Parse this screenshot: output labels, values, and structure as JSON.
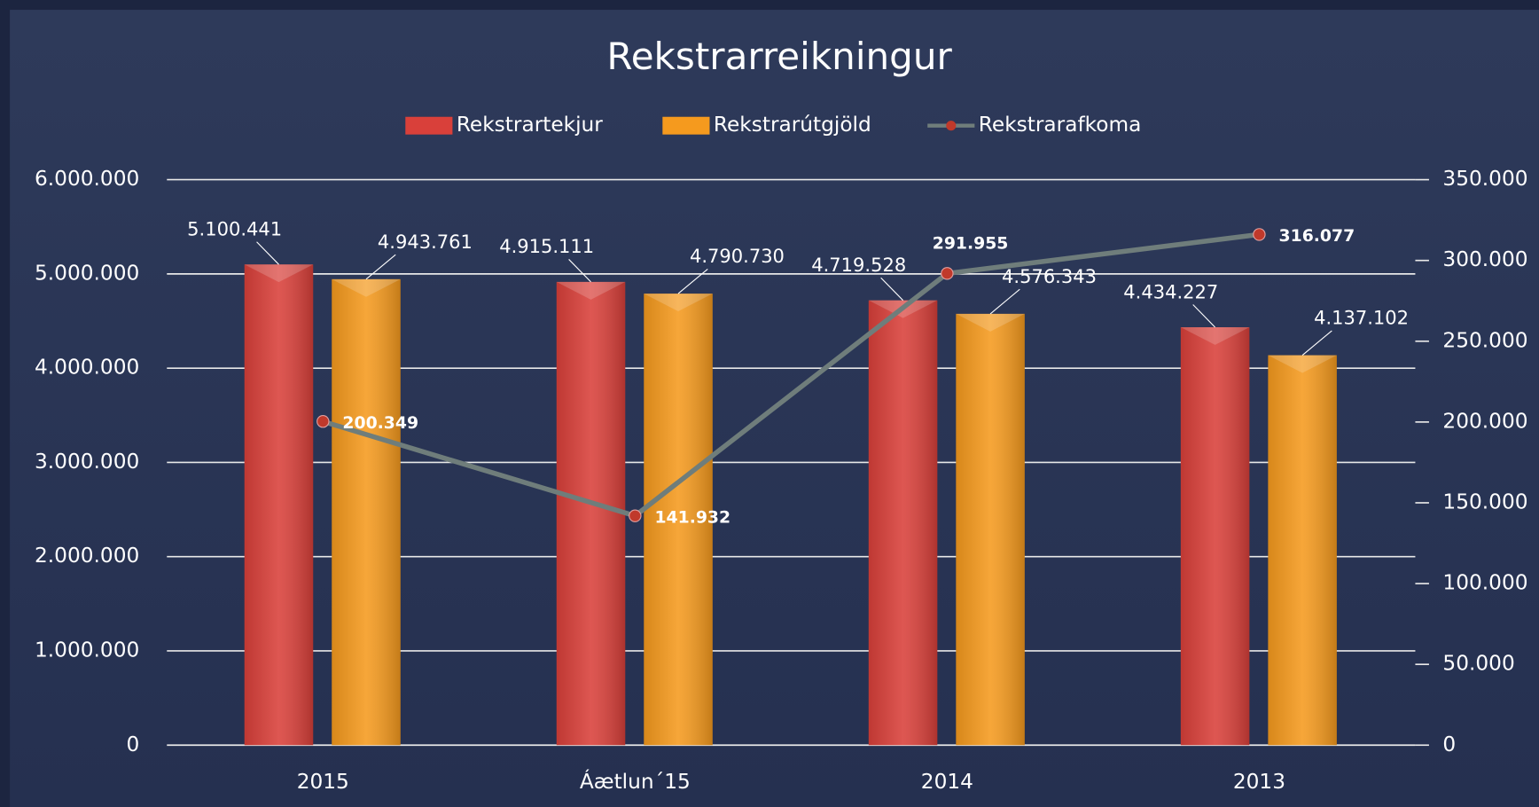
{
  "chart_data": {
    "type": "bar",
    "title": "Rekstrarreikningur",
    "categories": [
      "2015",
      "Áætlun´15",
      "2014",
      "2013"
    ],
    "series": [
      {
        "name": "Rekstrartekjur",
        "color": "#d9403a",
        "type": "bar",
        "values": [
          5100441,
          4915111,
          4719528,
          4434227
        ],
        "value_labels": [
          "5.100.441",
          "4.915.111",
          "4.719.528",
          "4.434.227"
        ]
      },
      {
        "name": "Rekstrarútgjöld",
        "color": "#f59a1e",
        "type": "bar",
        "values": [
          4943761,
          4790730,
          4576343,
          4137102
        ],
        "value_labels": [
          "4.943.761",
          "4.790.730",
          "4.576.343",
          "4.137.102"
        ]
      },
      {
        "name": "Rekstrarafkoma",
        "color": "#6f7d7b",
        "marker_color": "#c0392b",
        "type": "line",
        "axis": "y2",
        "values": [
          200349,
          141932,
          291955,
          316077
        ],
        "value_labels": [
          "200.349",
          "141.932",
          "291.955",
          "316.077"
        ]
      }
    ],
    "ylim": [
      0,
      6000000
    ],
    "yticks": [
      0,
      {
        "value": 1000000,
        "label": "1.000.000"
      },
      {
        "value": 2000000,
        "label": "2.000.000"
      },
      {
        "value": 3000000,
        "label": "3.000.000"
      },
      {
        "value": 4000000,
        "label": "4.000.000"
      },
      {
        "value": 5000000,
        "label": "5.000.000"
      },
      {
        "value": 6000000,
        "label": "6.000.000"
      }
    ],
    "y2lim": [
      0,
      350000
    ],
    "y2ticks": [
      0,
      {
        "value": 50000,
        "label": "50.000"
      },
      {
        "value": 100000,
        "label": "100.000"
      },
      {
        "value": 150000,
        "label": "150.000"
      },
      {
        "value": 200000,
        "label": "200.000"
      },
      {
        "value": 250000,
        "label": "250.000"
      },
      {
        "value": 300000,
        "label": "300.000"
      },
      {
        "value": 350000,
        "label": "350.000"
      }
    ],
    "grid": true,
    "legend": "top"
  }
}
